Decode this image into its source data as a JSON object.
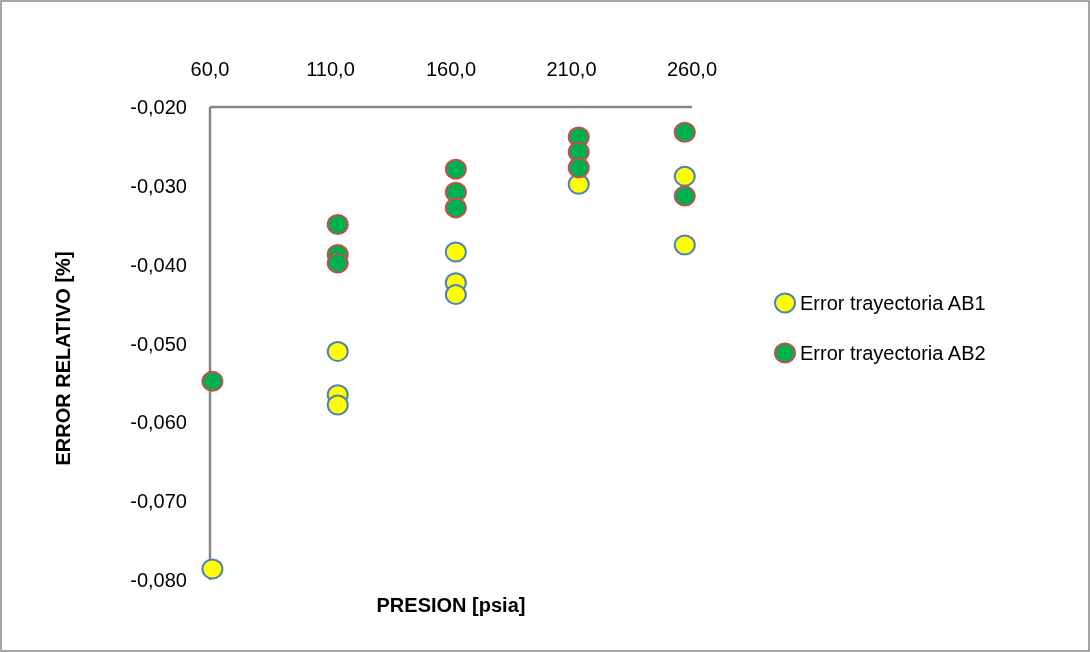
{
  "chart_data": {
    "type": "scatter",
    "xlabel": "PRESION [psia]",
    "ylabel": "ERROR RELATIVO [%]",
    "xlim": [
      60,
      260
    ],
    "xticks": [
      {
        "value": 60,
        "label": "60,0"
      },
      {
        "value": 110,
        "label": "110,0"
      },
      {
        "value": 160,
        "label": "160,0"
      },
      {
        "value": 210,
        "label": "210,0"
      },
      {
        "value": 260,
        "label": "260,0"
      }
    ],
    "ylim": [
      -0.08,
      -0.02
    ],
    "yticks": [
      {
        "value": -0.08,
        "label": "-0,080"
      },
      {
        "value": -0.07,
        "label": "-0,070"
      },
      {
        "value": -0.06,
        "label": "-0,060"
      },
      {
        "value": -0.05,
        "label": "-0,050"
      },
      {
        "value": -0.04,
        "label": "-0,040"
      },
      {
        "value": -0.03,
        "label": "-0,030"
      },
      {
        "value": -0.02,
        "label": "-0,020"
      }
    ],
    "grid": false,
    "legend": "right",
    "marker": "circle",
    "series": [
      {
        "name": "Error trayectoria AB1",
        "color": "#ffff00",
        "x": [
          61,
          113,
          113,
          113,
          162,
          162,
          162,
          213,
          257,
          257
        ],
        "values": [
          -0.0786,
          -0.051,
          -0.0565,
          -0.0578,
          -0.0384,
          -0.0423,
          -0.0438,
          -0.0298,
          -0.0288,
          -0.0375
        ]
      },
      {
        "name": "Error trayectoria AB2",
        "color": "#00b050",
        "x": [
          61,
          113,
          113,
          113,
          162,
          162,
          162,
          213,
          213,
          213,
          257,
          257
        ],
        "values": [
          -0.0548,
          -0.0349,
          -0.0387,
          -0.0398,
          -0.0279,
          -0.0308,
          -0.0328,
          -0.0238,
          -0.0257,
          -0.0277,
          -0.0232,
          -0.0313
        ]
      }
    ]
  }
}
